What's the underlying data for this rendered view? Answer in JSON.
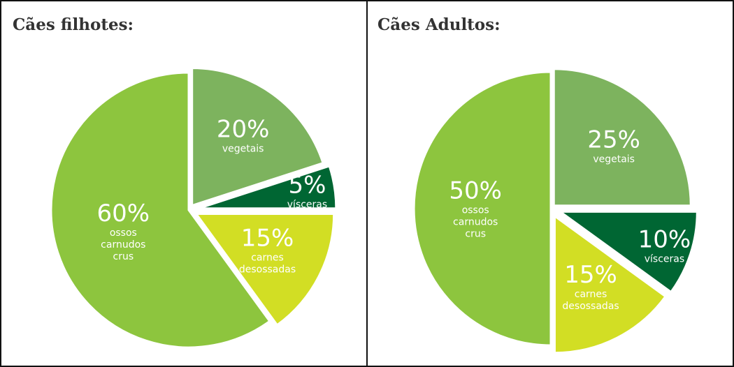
{
  "chart_data": [
    {
      "type": "pie",
      "title": "Cães filhotes:",
      "slices": [
        {
          "value": 20,
          "pct_label": "20%",
          "label_lines": [
            "vegetais"
          ],
          "color": "#7db35e"
        },
        {
          "value": 5,
          "pct_label": "5%",
          "label_lines": [
            "vísceras"
          ],
          "color": "#006633"
        },
        {
          "value": 15,
          "pct_label": "15%",
          "label_lines": [
            "carnes",
            "desossadas"
          ],
          "color": "#d2de24"
        },
        {
          "value": 60,
          "pct_label": "60%",
          "label_lines": [
            "ossos",
            "carnudos",
            "crus"
          ],
          "color": "#8dc53e"
        }
      ]
    },
    {
      "type": "pie",
      "title": "Cães Adultos:",
      "slices": [
        {
          "value": 25,
          "pct_label": "25%",
          "label_lines": [
            "vegetais"
          ],
          "color": "#7db35e"
        },
        {
          "value": 10,
          "pct_label": "10%",
          "label_lines": [
            "vísceras"
          ],
          "color": "#006633"
        },
        {
          "value": 15,
          "pct_label": "15%",
          "label_lines": [
            "carnes",
            "desossadas"
          ],
          "color": "#d2de24"
        },
        {
          "value": 50,
          "pct_label": "50%",
          "label_lines": [
            "ossos",
            "carnudos",
            "crus"
          ],
          "color": "#8dc53e"
        }
      ]
    }
  ]
}
